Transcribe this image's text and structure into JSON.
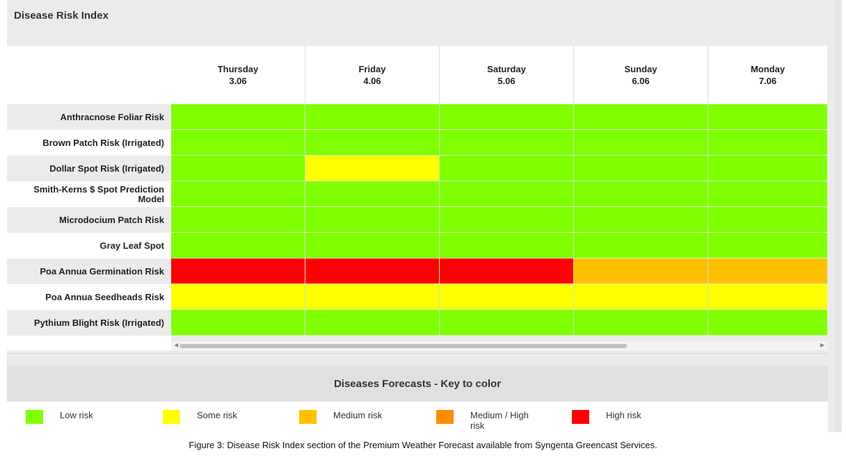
{
  "title": "Disease Risk Index",
  "columns": [
    {
      "day": "Thursday",
      "date": "3.06"
    },
    {
      "day": "Friday",
      "date": "4.06"
    },
    {
      "day": "Saturday",
      "date": "5.06"
    },
    {
      "day": "Sunday",
      "date": "6.06"
    },
    {
      "day": "Monday",
      "date": "7.06"
    }
  ],
  "rows": [
    {
      "label": "Anthracnose Foliar Risk",
      "risks": [
        "low",
        "low",
        "low",
        "low",
        "low"
      ]
    },
    {
      "label": "Brown Patch Risk (Irrigated)",
      "risks": [
        "low",
        "low",
        "low",
        "low",
        "low"
      ]
    },
    {
      "label": "Dollar Spot Risk (Irrigated)",
      "risks": [
        "low",
        "some",
        "low",
        "low",
        "low"
      ]
    },
    {
      "label": "Smith-Kerns $ Spot Prediction Model",
      "risks": [
        "low",
        "low",
        "low",
        "low",
        "low"
      ]
    },
    {
      "label": "Microdocium Patch Risk",
      "risks": [
        "low",
        "low",
        "low",
        "low",
        "low"
      ]
    },
    {
      "label": "Gray Leaf Spot",
      "risks": [
        "low",
        "low",
        "low",
        "low",
        "low"
      ]
    },
    {
      "label": "Poa Annua Germination Risk",
      "risks": [
        "high",
        "high",
        "high",
        "medium",
        "medium"
      ]
    },
    {
      "label": "Poa Annua Seedheads Risk",
      "risks": [
        "some",
        "some",
        "some",
        "some",
        "some"
      ]
    },
    {
      "label": "Pythium Blight Risk (Irrigated)",
      "risks": [
        "low",
        "low",
        "low",
        "low",
        "low"
      ]
    }
  ],
  "risk_colors": {
    "low": "#80ff00",
    "some": "#ffff00",
    "medium": "#ffc000",
    "medium_high": "#ff8c00",
    "high": "#ff0000"
  },
  "key": {
    "title": "Diseases Forecasts - Key to color",
    "items": [
      {
        "label": "Low risk",
        "risk": "low"
      },
      {
        "label": "Some risk",
        "risk": "some"
      },
      {
        "label": "Medium risk",
        "risk": "medium"
      },
      {
        "label": "Medium / High risk",
        "risk": "medium_high"
      },
      {
        "label": "High risk",
        "risk": "high"
      }
    ]
  },
  "caption": "Figure 3: Disease Risk Index section of the Premium Weather Forecast available from Syngenta Greencast Services."
}
